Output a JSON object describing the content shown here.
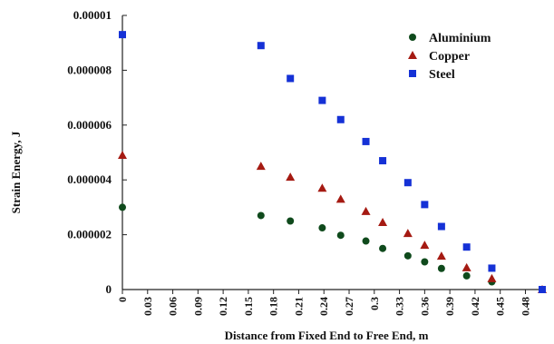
{
  "chart_data": {
    "type": "scatter",
    "title": "",
    "xlabel": "Distance from Fixed End to Free End, m",
    "ylabel": "Strain Energy,  J",
    "xlim": [
      0,
      0.5
    ],
    "ylim": [
      0,
      1e-05
    ],
    "x_ticks": [
      "0",
      "0.03",
      "0.06",
      "0.09",
      "0.12",
      "0.15",
      "0.18",
      "0.21",
      "0.24",
      "0.27",
      "0.3",
      "0.33",
      "0.36",
      "0.39",
      "0.42",
      "0.45",
      "0.48"
    ],
    "y_ticks": [
      "0",
      "0.000002",
      "0.000004",
      "0.000006",
      "0.000008",
      "0.00001"
    ],
    "legend_position": "top-right",
    "grid": false,
    "series": [
      {
        "name": "Aluminium",
        "marker": "circle",
        "color": "#0f4a1c",
        "points": [
          [
            0,
            3e-06
          ],
          [
            0.165,
            2.7e-06
          ],
          [
            0.2,
            2.5e-06
          ],
          [
            0.238,
            2.25e-06
          ],
          [
            0.26,
            1.98e-06
          ],
          [
            0.29,
            1.77e-06
          ],
          [
            0.31,
            1.5e-06
          ],
          [
            0.34,
            1.23e-06
          ],
          [
            0.36,
            1.01e-06
          ],
          [
            0.38,
            7.7e-07
          ],
          [
            0.41,
            5e-07
          ],
          [
            0.44,
            2.8e-07
          ],
          [
            0.5,
            0.0
          ]
        ]
      },
      {
        "name": "Copper",
        "marker": "triangle",
        "color": "#a51a12",
        "points": [
          [
            0,
            4.9e-06
          ],
          [
            0.165,
            4.5e-06
          ],
          [
            0.2,
            4.1e-06
          ],
          [
            0.238,
            3.7e-06
          ],
          [
            0.26,
            3.3e-06
          ],
          [
            0.29,
            2.85e-06
          ],
          [
            0.31,
            2.45e-06
          ],
          [
            0.34,
            2.05e-06
          ],
          [
            0.36,
            1.62e-06
          ],
          [
            0.38,
            1.22e-06
          ],
          [
            0.41,
            8e-07
          ],
          [
            0.44,
            4e-07
          ],
          [
            0.5,
            0.0
          ]
        ]
      },
      {
        "name": "Steel",
        "marker": "square",
        "color": "#1531d6",
        "points": [
          [
            0,
            9.3e-06
          ],
          [
            0.165,
            8.9e-06
          ],
          [
            0.2,
            7.7e-06
          ],
          [
            0.238,
            6.9e-06
          ],
          [
            0.26,
            6.2e-06
          ],
          [
            0.29,
            5.4e-06
          ],
          [
            0.31,
            4.7e-06
          ],
          [
            0.34,
            3.9e-06
          ],
          [
            0.36,
            3.1e-06
          ],
          [
            0.38,
            2.3e-06
          ],
          [
            0.41,
            1.55e-06
          ],
          [
            0.44,
            7.8e-07
          ],
          [
            0.5,
            0.0
          ]
        ]
      }
    ]
  }
}
